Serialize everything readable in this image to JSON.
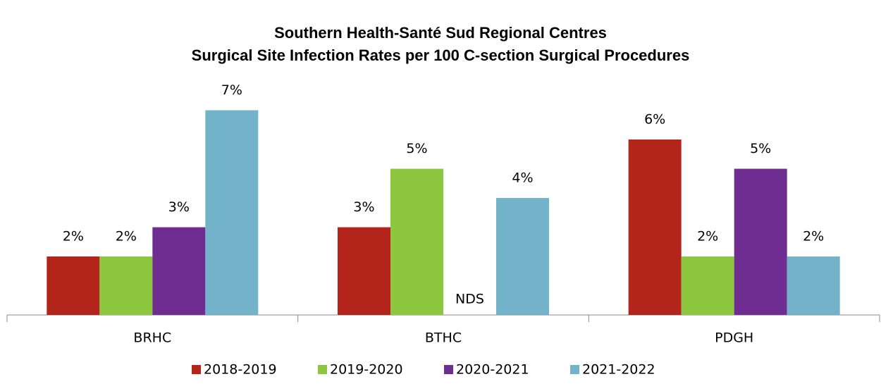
{
  "chart_data": {
    "type": "bar",
    "title": "Southern Health-Santé Sud Regional Centres",
    "subtitle": "Surgical Site Infection Rates per 100 C-section Surgical Procedures",
    "categories": [
      "BRHC",
      "BTHC",
      "PDGH"
    ],
    "series": [
      {
        "name": "2018-2019",
        "color": "#b3241a",
        "values": [
          2,
          3,
          6
        ],
        "value_labels": [
          "2%",
          "3%",
          "6%"
        ]
      },
      {
        "name": "2019-2020",
        "color": "#8dc63f",
        "values": [
          2,
          5,
          2
        ],
        "value_labels": [
          "2%",
          "5%",
          "2%"
        ]
      },
      {
        "name": "2020-2021",
        "color": "#6f2c91",
        "values": [
          3,
          null,
          5
        ],
        "value_labels": [
          "3%",
          "NDS",
          "5%"
        ]
      },
      {
        "name": "2021-2022",
        "color": "#72b3c9",
        "values": [
          7,
          4,
          2
        ],
        "value_labels": [
          "7%",
          "4%",
          "2%"
        ]
      }
    ],
    "ylim": [
      0,
      8
    ],
    "legend": "bottom"
  }
}
